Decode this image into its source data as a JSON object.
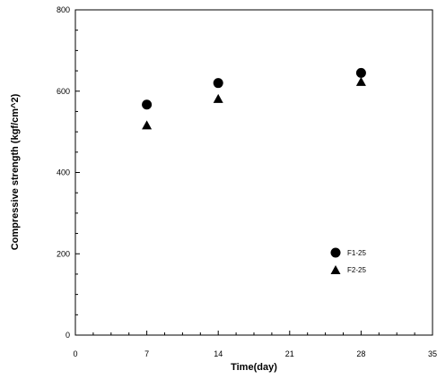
{
  "chart_data": {
    "type": "scatter",
    "title": "",
    "xlabel": "Time(day)",
    "ylabel": "Compressive strength (kgf/cm^2)",
    "xlim": [
      0,
      35
    ],
    "ylim": [
      0,
      800
    ],
    "xticks": [
      0,
      7,
      14,
      21,
      28,
      35
    ],
    "yticks": [
      0,
      200,
      400,
      600,
      800
    ],
    "grid": false,
    "legend_position": "bottom-right",
    "series": [
      {
        "name": "F1-25",
        "marker": "circle",
        "color": "#000000",
        "points": [
          {
            "x": 7,
            "y": 567
          },
          {
            "x": 14,
            "y": 620
          },
          {
            "x": 28,
            "y": 645
          }
        ]
      },
      {
        "name": "F2-25",
        "marker": "triangle",
        "color": "#000000",
        "points": [
          {
            "x": 7,
            "y": 517
          },
          {
            "x": 14,
            "y": 582
          },
          {
            "x": 28,
            "y": 624
          }
        ]
      }
    ]
  }
}
